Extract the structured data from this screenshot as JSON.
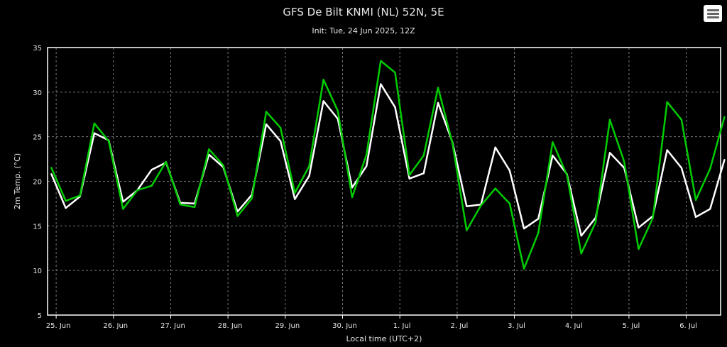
{
  "header": {
    "title": "GFS De Bilt KNMI (NL) 52N, 5E",
    "subtitle": "Init: Tue, 24 Jun 2025, 12Z"
  },
  "toolbar": {
    "menu_icon": "hamburger-menu-icon"
  },
  "colors": {
    "background": "#000000",
    "series_white": "#ffffff",
    "series_green": "#00cc00",
    "grid": "#777777"
  },
  "chart_data": {
    "type": "line",
    "title": "GFS De Bilt KNMI (NL) 52N, 5E",
    "subtitle": "Init: Tue, 24 Jun 2025, 12Z",
    "xlabel": "Local time (UTC+2)",
    "ylabel": "2m Temp. (°C)",
    "ylim": [
      5,
      35
    ],
    "yticks": [
      5,
      10,
      15,
      20,
      25,
      30,
      35
    ],
    "xlim": [
      24.85,
      36.6
    ],
    "xtick_positions": [
      25,
      26,
      27,
      28,
      29,
      30,
      31,
      32,
      33,
      34,
      35,
      36
    ],
    "xtick_labels": [
      "25. Jun",
      "26. Jun",
      "27. Jun",
      "28. Jun",
      "29. Jun",
      "30. Jun",
      "1. Jul",
      "2. Jul",
      "3. Jul",
      "4. Jul",
      "5. Jul",
      "6. Jul"
    ],
    "grid": true,
    "x": [
      24.917,
      25.167,
      25.417,
      25.667,
      25.917,
      26.167,
      26.417,
      26.667,
      26.917,
      27.167,
      27.417,
      27.667,
      27.917,
      28.167,
      28.417,
      28.667,
      28.917,
      29.167,
      29.417,
      29.667,
      29.917,
      30.167,
      30.417,
      30.667,
      30.917,
      31.167,
      31.417,
      31.667,
      31.917,
      32.167,
      32.417,
      32.667,
      32.917,
      33.167,
      33.417,
      33.667,
      33.917,
      34.167,
      34.417,
      34.667,
      34.917,
      35.167,
      35.417,
      35.667,
      35.917,
      36.167,
      36.417,
      36.667
    ],
    "series": [
      {
        "color": "#ffffff",
        "values": [
          20.8,
          17.0,
          18.3,
          25.4,
          24.6,
          17.7,
          19.0,
          21.3,
          22.1,
          17.6,
          17.5,
          23.0,
          21.6,
          16.6,
          18.5,
          26.4,
          24.5,
          18.0,
          20.6,
          29.0,
          27.0,
          19.3,
          21.7,
          30.9,
          28.3,
          20.3,
          20.9,
          28.8,
          24.4,
          17.2,
          17.4,
          23.8,
          21.2,
          14.7,
          15.8,
          22.9,
          20.8,
          13.9,
          15.9,
          23.2,
          21.5,
          14.8,
          16.1,
          23.5,
          21.5,
          16.0,
          16.9,
          22.4
        ]
      },
      {
        "color": "#00cc00",
        "values": [
          21.5,
          17.8,
          18.4,
          26.5,
          24.5,
          16.9,
          19.0,
          19.5,
          22.2,
          17.4,
          17.1,
          23.6,
          21.8,
          16.1,
          18.1,
          27.8,
          26.0,
          18.7,
          21.7,
          31.4,
          27.9,
          18.2,
          23.0,
          33.5,
          32.2,
          20.7,
          22.9,
          30.5,
          24.3,
          14.5,
          17.3,
          19.2,
          17.5,
          10.2,
          14.2,
          24.4,
          20.7,
          11.9,
          15.4,
          26.9,
          22.2,
          12.4,
          15.9,
          28.9,
          26.9,
          17.9,
          21.4,
          27.2
        ]
      }
    ]
  }
}
